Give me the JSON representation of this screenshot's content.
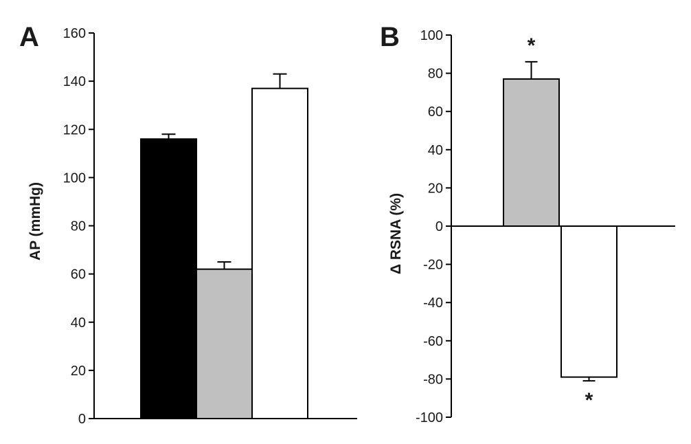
{
  "chart_data": [
    {
      "panel": "A",
      "type": "bar",
      "title": "",
      "xlabel": "",
      "ylabel": "AP (mmHg)",
      "ylim": [
        0,
        160
      ],
      "yticks": [
        0,
        20,
        40,
        60,
        80,
        100,
        120,
        140,
        160
      ],
      "grid": false,
      "bars": [
        {
          "value": 116,
          "error": 2,
          "fill": "#000000"
        },
        {
          "value": 62,
          "error": 3,
          "fill": "#c0c0c0"
        },
        {
          "value": 137,
          "error": 6,
          "fill": "#ffffff"
        }
      ],
      "annotations": []
    },
    {
      "panel": "B",
      "type": "bar",
      "title": "",
      "xlabel": "",
      "ylabel": "Δ RSNA (%)",
      "ylim": [
        -100,
        100
      ],
      "yticks": [
        -100,
        -80,
        -60,
        -40,
        -20,
        0,
        20,
        40,
        60,
        80,
        100
      ],
      "grid": false,
      "bars": [
        {
          "value": 77,
          "error": 9,
          "fill": "#c0c0c0",
          "marker": "*"
        },
        {
          "value": -79,
          "error": 2,
          "fill": "#ffffff",
          "marker": "*"
        }
      ]
    }
  ]
}
